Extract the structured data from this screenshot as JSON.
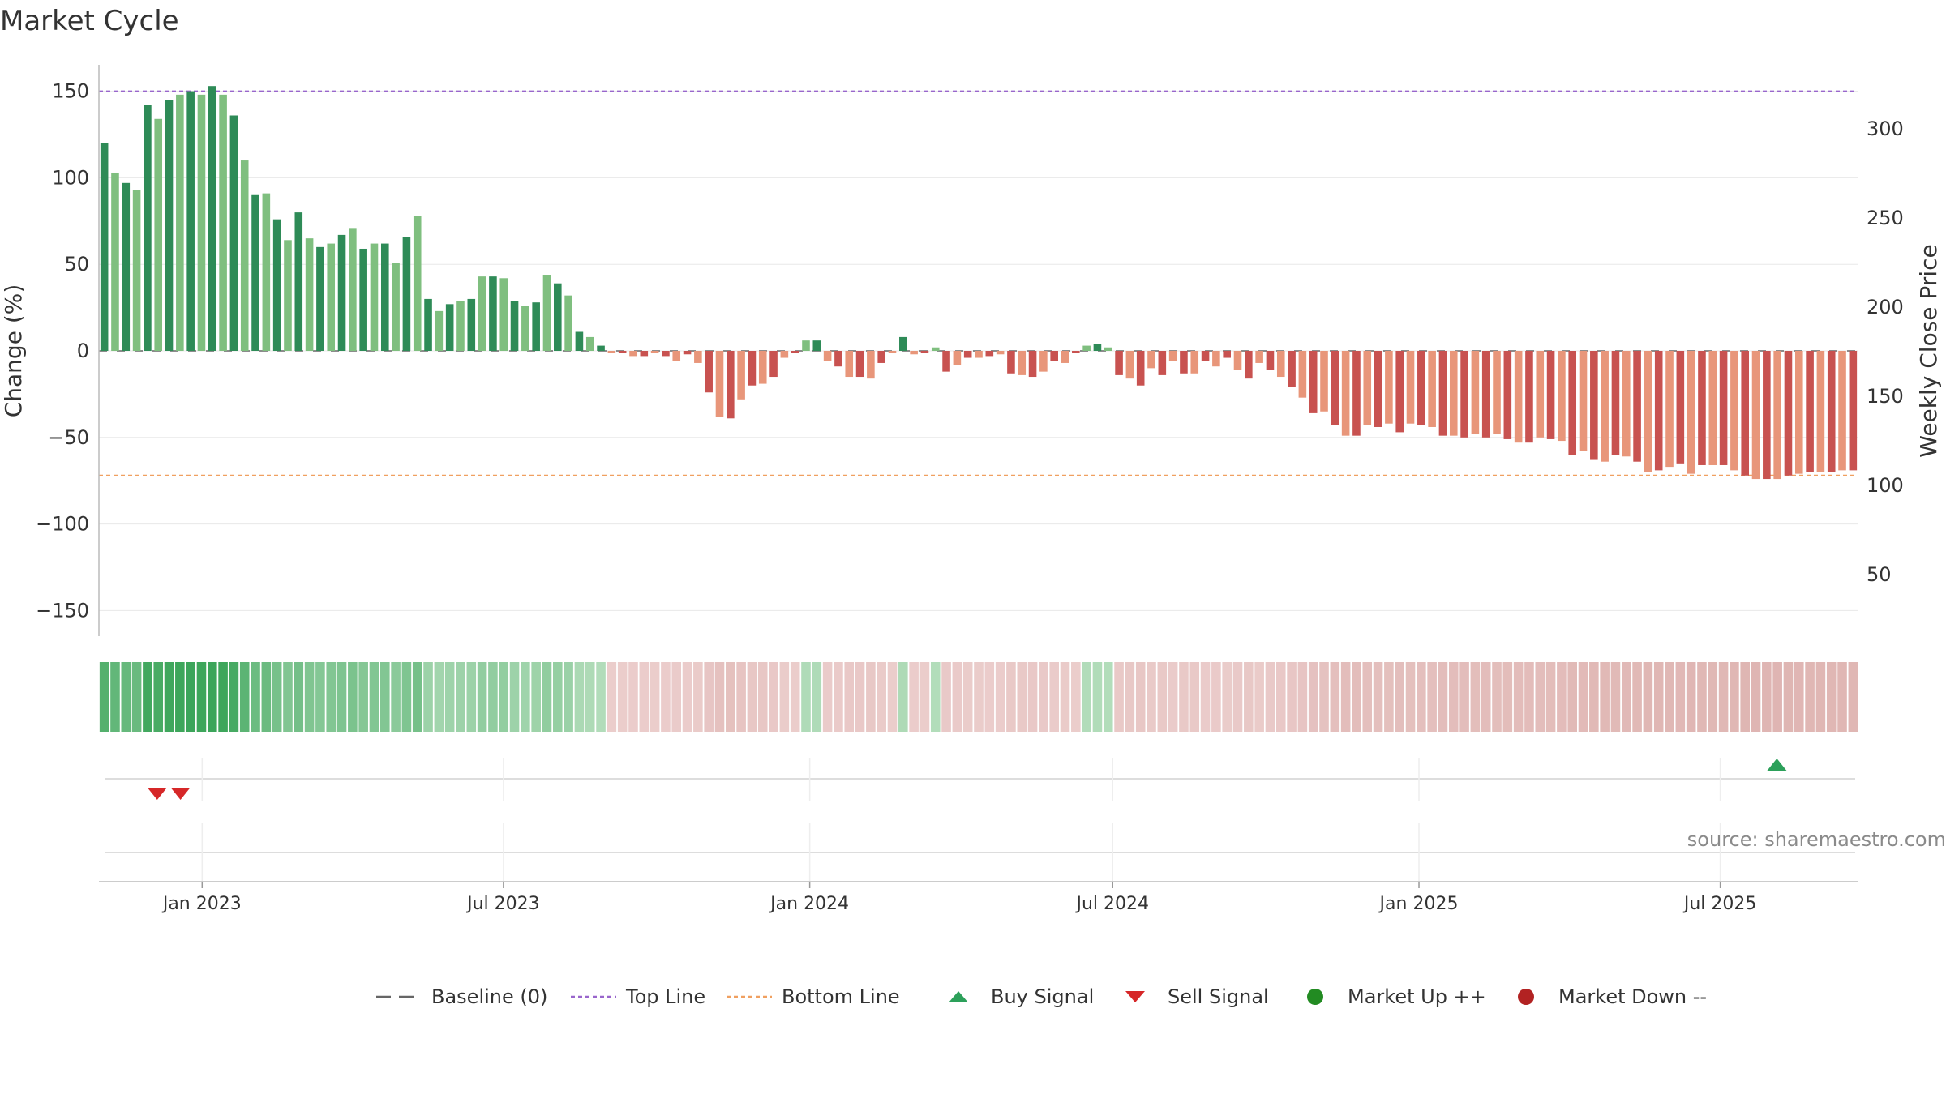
{
  "page": {
    "source_note": "source: sharemaestro.com"
  },
  "colors": {
    "up_strong": "#2e8b57",
    "up_light": "#7fbf7f",
    "down_strong": "#c85250",
    "down_light": "#e8967a",
    "top_line": "#9966cc",
    "bottom_line": "#f0a060",
    "baseline": "#666666",
    "buy": "#2ca05a",
    "sell": "#d62728",
    "market_up": "#228b22",
    "market_down": "#b22222"
  },
  "chart_data": {
    "type": "bar",
    "title": "Market Cycle",
    "ylabel": "Change (%)",
    "y2label": "Weekly Close Price",
    "ylim": [
      -165,
      165
    ],
    "yticks": [
      150,
      100,
      50,
      0,
      -50,
      -100,
      -150
    ],
    "y2ticks": [
      300,
      250,
      200,
      150,
      100,
      50
    ],
    "top_line": 150,
    "bottom_line": -72,
    "x_start": "2022-10-31",
    "x_end": "2025-09-22",
    "xticks": [
      {
        "date": "2023-01-01",
        "label": "Jan 2023"
      },
      {
        "date": "2023-07-01",
        "label": "Jul 2023"
      },
      {
        "date": "2024-01-01",
        "label": "Jan 2024"
      },
      {
        "date": "2024-07-01",
        "label": "Jul 2024"
      },
      {
        "date": "2025-01-01",
        "label": "Jan 2025"
      },
      {
        "date": "2025-07-01",
        "label": "Jul 2025"
      }
    ],
    "values": [
      120,
      103,
      97,
      93,
      142,
      134,
      145,
      148,
      150,
      148,
      153,
      148,
      136,
      110,
      90,
      91,
      76,
      64,
      80,
      65,
      60,
      62,
      67,
      71,
      59,
      62,
      62,
      51,
      66,
      78,
      30,
      23,
      27,
      29,
      30,
      43,
      43,
      42,
      29,
      26,
      28,
      44,
      39,
      32,
      11,
      8,
      3,
      -1,
      -1,
      -3,
      -3,
      -1,
      -3,
      -6,
      -2,
      -7,
      -24,
      -38,
      -39,
      -28,
      -20,
      -19,
      -15,
      -4,
      -1,
      6,
      6,
      -6,
      -9,
      -15,
      -15,
      -16,
      -7,
      -1,
      8,
      -2,
      -1,
      2,
      -12,
      -8,
      -4,
      -4,
      -3,
      -2,
      -13,
      -14,
      -15,
      -12,
      -6,
      -7,
      -1,
      3,
      4,
      2,
      -14,
      -16,
      -20,
      -10,
      -14,
      -6,
      -13,
      -13,
      -6,
      -9,
      -4,
      -11,
      -16,
      -7,
      -11,
      -15,
      -21,
      -27,
      -36,
      -35,
      -43,
      -49,
      -49,
      -43,
      -44,
      -42,
      -47,
      -42,
      -43,
      -44,
      -49,
      -49,
      -50,
      -48,
      -50,
      -48,
      -51,
      -53,
      -53,
      -50,
      -51,
      -52,
      -60,
      -58,
      -63,
      -64,
      -60,
      -61,
      -64,
      -70,
      -69,
      -67,
      -65,
      -71,
      -66,
      -66,
      -66,
      -69,
      -72,
      -74,
      -74,
      -74,
      -72,
      -71,
      -70,
      -70,
      -70,
      -69,
      -69
    ],
    "strip_labels": [],
    "sell_signals": [
      "2022-12-05",
      "2022-12-19"
    ],
    "buy_signals": [
      "2025-08-04"
    ],
    "legend": {
      "position": "bottom",
      "entries": [
        {
          "label": "Baseline (0)",
          "marker": "dashed-line",
          "color": "#666666"
        },
        {
          "label": "Top Line",
          "marker": "dotted-line",
          "color": "#9966cc"
        },
        {
          "label": "Bottom Line",
          "marker": "dotted-line",
          "color": "#f0a060"
        },
        {
          "label": "Buy Signal",
          "marker": "triangle-up",
          "color": "#2ca05a"
        },
        {
          "label": "Sell Signal",
          "marker": "triangle-down",
          "color": "#d62728"
        },
        {
          "label": "Market Up ++",
          "marker": "circle",
          "color": "#228b22"
        },
        {
          "label": "Market Down --",
          "marker": "circle",
          "color": "#b22222"
        }
      ]
    }
  }
}
